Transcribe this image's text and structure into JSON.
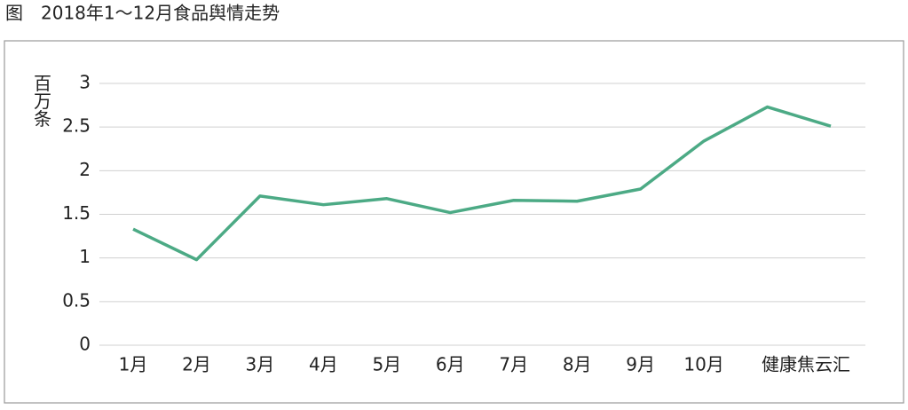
{
  "chart_data": {
    "type": "line",
    "title": "图　2018年1～12月食品舆情走势",
    "y_label": "百万条",
    "categories": [
      "1月",
      "2月",
      "3月",
      "4月",
      "5月",
      "6月",
      "7月",
      "8月",
      "9月",
      "10月",
      null,
      null
    ],
    "series": [
      {
        "name": "食品舆情",
        "color": "#4caa85",
        "values": [
          1.33,
          0.98,
          1.71,
          1.61,
          1.68,
          1.52,
          1.66,
          1.65,
          1.79,
          2.34,
          2.73,
          2.51
        ]
      }
    ],
    "ylim": [
      0,
      3
    ],
    "yticks": [
      0,
      0.5,
      1,
      1.5,
      2,
      2.5,
      3
    ],
    "grid": true,
    "watermark": "健康焦云汇"
  }
}
